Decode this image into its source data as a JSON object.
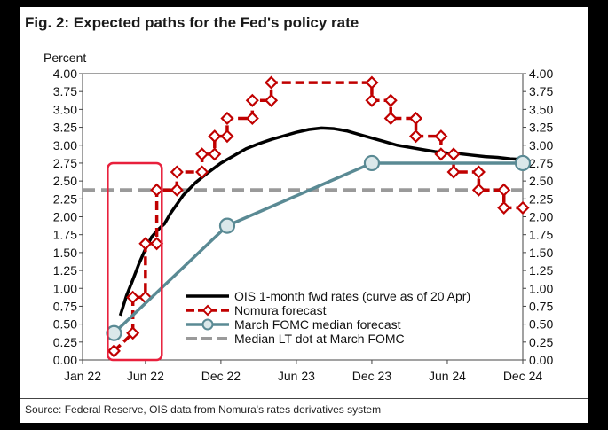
{
  "figure": {
    "title": "Fig. 2: Expected paths for the Fed's policy rate",
    "source": "Source: Federal Reserve, OIS data from Nomura's rates derivatives system"
  },
  "chart_data": {
    "type": "line",
    "ylabel": "Percent",
    "ylim": [
      0,
      4
    ],
    "yticks": [
      "0.00",
      "0.25",
      "0.50",
      "0.75",
      "1.00",
      "1.25",
      "1.50",
      "1.75",
      "2.00",
      "2.25",
      "2.50",
      "2.75",
      "3.00",
      "3.25",
      "3.50",
      "3.75",
      "4.00"
    ],
    "xticks": [
      {
        "label": "Jan 22",
        "value": 0
      },
      {
        "label": "Jun 22",
        "value": 5
      },
      {
        "label": "Dec 22",
        "value": 11
      },
      {
        "label": "Jun 23",
        "value": 17
      },
      {
        "label": "Dec 23",
        "value": 23
      },
      {
        "label": "Jun 24",
        "value": 29
      },
      {
        "label": "Dec 24",
        "value": 35
      }
    ],
    "grid": false,
    "legend_position": "bottom-right",
    "series": [
      {
        "name": "OIS 1-month fwd rates (curve as of 20 Apr)",
        "color": "#000000",
        "style": "line",
        "points": [
          [
            3.0,
            0.62
          ],
          [
            3.5,
            0.9
          ],
          [
            4.0,
            1.12
          ],
          [
            4.5,
            1.35
          ],
          [
            5.0,
            1.55
          ],
          [
            5.5,
            1.72
          ],
          [
            6.0,
            1.82
          ],
          [
            6.5,
            1.9
          ],
          [
            7.0,
            2.05
          ],
          [
            8.0,
            2.3
          ],
          [
            9.0,
            2.48
          ],
          [
            10.0,
            2.62
          ],
          [
            11.0,
            2.75
          ],
          [
            12.0,
            2.85
          ],
          [
            13.0,
            2.95
          ],
          [
            14.0,
            3.02
          ],
          [
            15.0,
            3.08
          ],
          [
            16.0,
            3.13
          ],
          [
            17.0,
            3.18
          ],
          [
            18.0,
            3.22
          ],
          [
            19.0,
            3.24
          ],
          [
            20.0,
            3.23
          ],
          [
            21.0,
            3.2
          ],
          [
            22.0,
            3.15
          ],
          [
            23.0,
            3.1
          ],
          [
            24.0,
            3.05
          ],
          [
            25.0,
            3.0
          ],
          [
            26.0,
            2.97
          ],
          [
            27.0,
            2.94
          ],
          [
            28.0,
            2.91
          ],
          [
            29.0,
            2.89
          ],
          [
            30.0,
            2.88
          ],
          [
            31.0,
            2.86
          ],
          [
            32.0,
            2.84
          ],
          [
            33.0,
            2.83
          ],
          [
            34.0,
            2.81
          ],
          [
            35.0,
            2.8
          ]
        ]
      },
      {
        "name": "Nomura forecast",
        "color": "#c00000",
        "style": "step-diamond",
        "points": [
          [
            2.5,
            0.125
          ],
          [
            4.0,
            0.375
          ],
          [
            4.0,
            0.875
          ],
          [
            5.0,
            0.875
          ],
          [
            5.0,
            1.625
          ],
          [
            5.9,
            1.625
          ],
          [
            5.9,
            2.375
          ],
          [
            7.5,
            2.375
          ],
          [
            7.5,
            2.625
          ],
          [
            9.5,
            2.625
          ],
          [
            9.5,
            2.875
          ],
          [
            10.5,
            2.875
          ],
          [
            10.5,
            3.125
          ],
          [
            11.5,
            3.125
          ],
          [
            11.5,
            3.375
          ],
          [
            13.5,
            3.375
          ],
          [
            13.5,
            3.625
          ],
          [
            15.0,
            3.625
          ],
          [
            15.0,
            3.875
          ],
          [
            23.0,
            3.875
          ],
          [
            23.0,
            3.625
          ],
          [
            24.5,
            3.625
          ],
          [
            24.5,
            3.375
          ],
          [
            26.5,
            3.375
          ],
          [
            26.5,
            3.125
          ],
          [
            28.5,
            3.125
          ],
          [
            28.5,
            2.875
          ],
          [
            29.5,
            2.875
          ],
          [
            29.5,
            2.625
          ],
          [
            31.5,
            2.625
          ],
          [
            31.5,
            2.375
          ],
          [
            33.5,
            2.375
          ],
          [
            33.5,
            2.125
          ],
          [
            35.0,
            2.125
          ]
        ]
      },
      {
        "name": "March FOMC median forecast",
        "color": "#5a8a94",
        "style": "line-marker",
        "points": [
          [
            2.5,
            0.375
          ],
          [
            11.5,
            1.875
          ],
          [
            23.0,
            2.75
          ],
          [
            35.0,
            2.75
          ]
        ]
      },
      {
        "name": "Median LT dot at March FOMC",
        "color": "#9a9a9a",
        "style": "dashed",
        "y": 2.375
      }
    ],
    "annotations": [
      {
        "type": "box",
        "color": "#e8203c",
        "x_range": [
          2.0,
          6.3
        ],
        "y_range": [
          0.0,
          2.65
        ]
      }
    ]
  }
}
